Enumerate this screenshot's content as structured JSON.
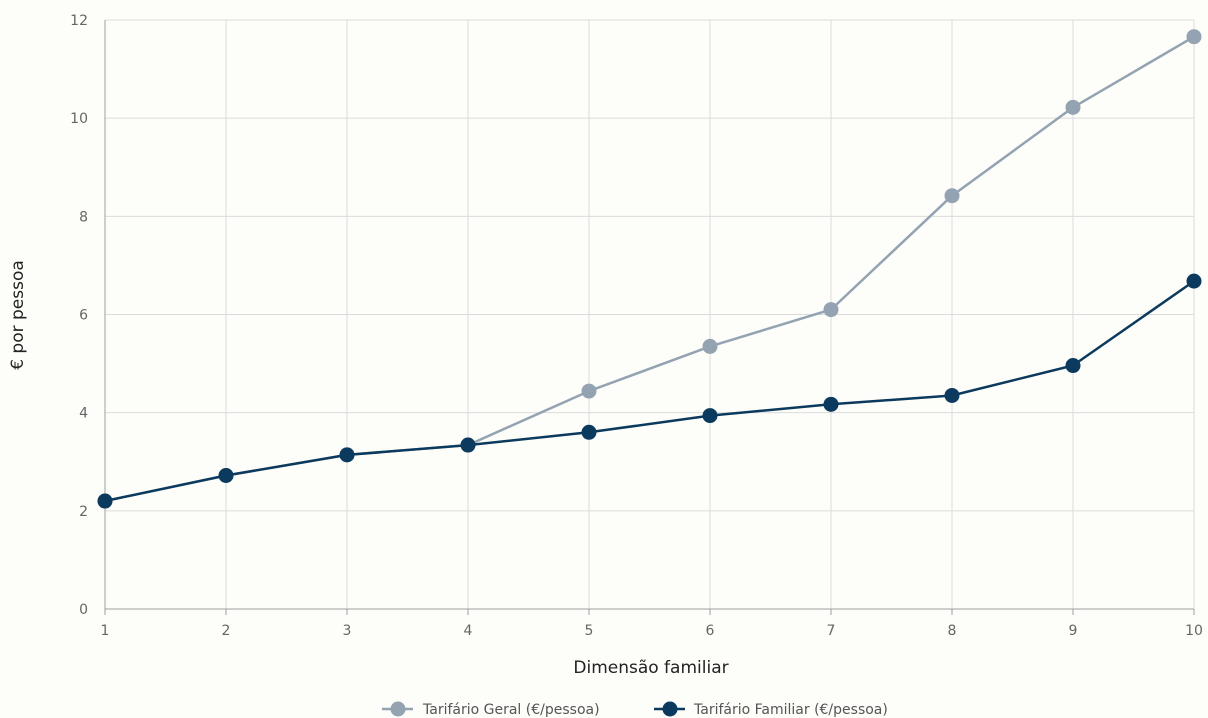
{
  "chart_data": {
    "type": "line",
    "xlabel": "Dimensão familiar",
    "ylabel": "€ por pessoa",
    "x": [
      1,
      2,
      3,
      4,
      5,
      6,
      7,
      8,
      9,
      10
    ],
    "xlim": [
      1,
      10
    ],
    "ylim": [
      0,
      12
    ],
    "yticks": [
      0,
      2,
      4,
      6,
      8,
      10,
      12
    ],
    "xticks": [
      1,
      2,
      3,
      4,
      5,
      6,
      7,
      8,
      9,
      10
    ],
    "grid": true,
    "legend_position": "bottom",
    "series": [
      {
        "name": "Tarifário Geral (€/pessoa)",
        "color": "#94a3b2",
        "values": [
          2.2,
          2.72,
          3.14,
          3.34,
          4.44,
          5.35,
          6.1,
          8.42,
          10.22,
          11.66
        ]
      },
      {
        "name": "Tarifário Familiar (€/pessoa)",
        "color": "#0b3a5e",
        "values": [
          2.2,
          2.72,
          3.14,
          3.34,
          3.6,
          3.94,
          4.17,
          4.35,
          4.96,
          6.68
        ]
      }
    ]
  },
  "colors": {
    "background": "#fdfdf9",
    "grid": "#dcdcdc",
    "axis": "#9e9e9e"
  }
}
